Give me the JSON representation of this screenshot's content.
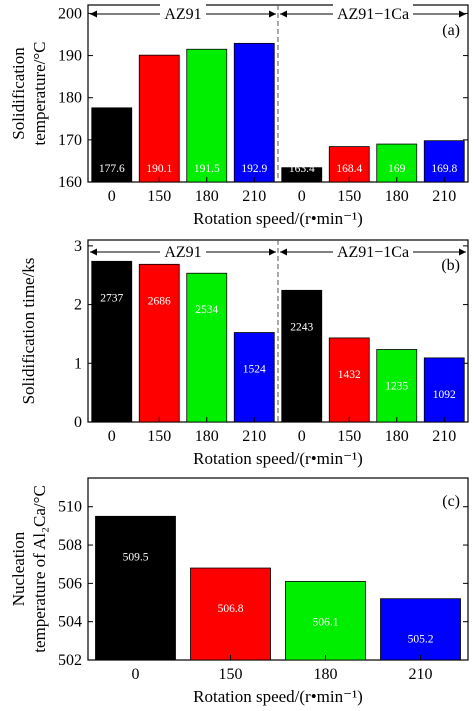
{
  "chart_data": [
    {
      "type": "bar",
      "panel_tag": "(a)",
      "ylabel": [
        "Solidification",
        "temperature/°C"
      ],
      "xlabel": "Rotation speed/(r•min⁻¹)",
      "ylim": [
        160,
        202
      ],
      "yticks": [
        160,
        170,
        180,
        190,
        200
      ],
      "groups": [
        {
          "name": "AZ91",
          "categories": [
            "0",
            "150",
            "180",
            "210"
          ],
          "values": [
            177.6,
            190.1,
            191.5,
            192.9
          ],
          "labels": [
            "177.6",
            "190.1",
            "191.5",
            "192.9"
          ],
          "colors": [
            "#000000",
            "#ff0000",
            "#00ee00",
            "#0000ff"
          ]
        },
        {
          "name": "AZ91−1Ca",
          "categories": [
            "0",
            "150",
            "180",
            "210"
          ],
          "values": [
            163.4,
            168.4,
            169,
            169.8
          ],
          "labels": [
            "163.4",
            "168.4",
            "169",
            "169.8"
          ],
          "colors": [
            "#000000",
            "#ff0000",
            "#00ee00",
            "#0000ff"
          ]
        }
      ]
    },
    {
      "type": "bar",
      "panel_tag": "(b)",
      "ylabel": [
        "Solidification time/ks"
      ],
      "xlabel": "Rotation speed/(r•min⁻¹)",
      "ylim": [
        0,
        3.1
      ],
      "yticks": [
        0,
        1,
        2,
        3
      ],
      "groups": [
        {
          "name": "AZ91",
          "categories": [
            "0",
            "150",
            "180",
            "210"
          ],
          "values": [
            2.737,
            2.686,
            2.534,
            1.524
          ],
          "labels": [
            "2737",
            "2686",
            "2534",
            "1524"
          ],
          "colors": [
            "#000000",
            "#ff0000",
            "#00ee00",
            "#0000ff"
          ]
        },
        {
          "name": "AZ91−1Ca",
          "categories": [
            "0",
            "150",
            "180",
            "210"
          ],
          "values": [
            2.243,
            1.432,
            1.235,
            1.092
          ],
          "labels": [
            "2243",
            "1432",
            "1235",
            "1092"
          ],
          "colors": [
            "#000000",
            "#ff0000",
            "#00ee00",
            "#0000ff"
          ]
        }
      ]
    },
    {
      "type": "bar",
      "panel_tag": "(c)",
      "ylabel": [
        "Nucleation",
        "temperature of Al₂Ca/°C"
      ],
      "xlabel": "Rotation speed/(r•min⁻¹)",
      "ylim": [
        502,
        511.5
      ],
      "yticks": [
        502,
        504,
        506,
        508,
        510
      ],
      "groups": [
        {
          "name": "",
          "categories": [
            "0",
            "150",
            "180",
            "210"
          ],
          "values": [
            509.5,
            506.8,
            506.1,
            505.2
          ],
          "labels": [
            "509.5",
            "506.8",
            "506.1",
            "505.2"
          ],
          "colors": [
            "#000000",
            "#ff0000",
            "#00ee00",
            "#0000ff"
          ]
        }
      ]
    }
  ]
}
